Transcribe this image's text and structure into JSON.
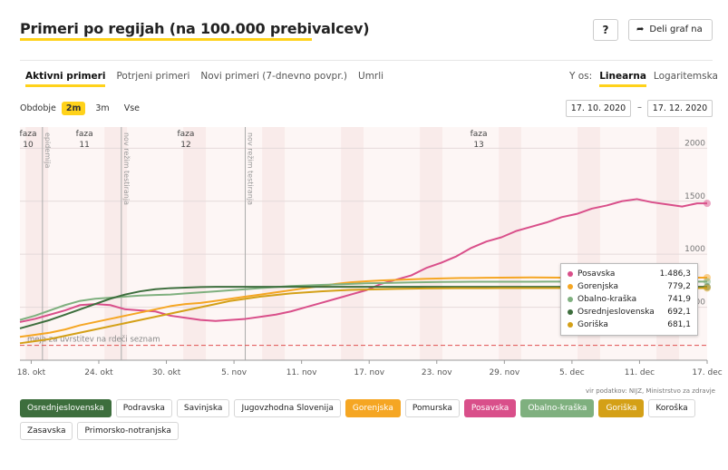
{
  "header": {
    "title": "Primeri po regijah (na 100.000 prebivalcev)",
    "help_label": "?",
    "share_label": "Deli graf na"
  },
  "tabs": [
    {
      "label": "Aktivni primeri",
      "active": true
    },
    {
      "label": "Potrjeni primeri",
      "active": false
    },
    {
      "label": "Novi primeri (7-dnevno povpr.)",
      "active": false
    },
    {
      "label": "Umrli",
      "active": false
    }
  ],
  "y_axis_toggle": {
    "label": "Y os:",
    "options": [
      {
        "label": "Linearna",
        "active": true
      },
      {
        "label": "Logaritemska",
        "active": false
      }
    ]
  },
  "period": {
    "label": "Obdobje",
    "options": [
      {
        "label": "2m",
        "active": true
      },
      {
        "label": "3m",
        "active": false
      },
      {
        "label": "Vse",
        "active": false
      }
    ],
    "date_from": "17. 10. 2020",
    "date_separator": "–",
    "date_to": "17. 12. 2020"
  },
  "chart_data": {
    "type": "line",
    "x_tick_labels": [
      "18. okt",
      "24. okt",
      "30. okt",
      "5. nov",
      "11. nov",
      "17. nov",
      "23. nov",
      "29. nov",
      "5. dec",
      "11. dec",
      "17. dec"
    ],
    "x_range": [
      "2020-10-17",
      "2020-12-17"
    ],
    "y_tick_labels": [
      "500",
      "1000",
      "1500",
      "2000"
    ],
    "ylim": [
      0,
      2200
    ],
    "threshold": {
      "value": 140,
      "label": "meja za uvrstitev na rdeči seznam",
      "color": "#e05050"
    },
    "phases": [
      {
        "label": "faza\n10",
        "date": "2020-10-17"
      },
      {
        "label": "faza\n11",
        "date": "2020-10-22"
      },
      {
        "label": "faza\n12",
        "date": "2020-10-31"
      },
      {
        "label": "faza\n13",
        "date": "2020-11-26"
      }
    ],
    "event_lines": [
      {
        "label": "epidemija",
        "date": "2020-10-19"
      },
      {
        "label": "nov režim testiranja",
        "date": "2020-10-26"
      },
      {
        "label": "nov režim testiranja",
        "date": "2020-11-06"
      }
    ],
    "series": [
      {
        "name": "Posavska",
        "color": "#d94f8a",
        "values": [
          [
            0,
            360
          ],
          [
            3,
            390
          ],
          [
            6,
            430
          ],
          [
            9,
            470
          ],
          [
            12,
            520
          ],
          [
            15,
            530
          ],
          [
            18,
            520
          ],
          [
            21,
            480
          ],
          [
            24,
            470
          ],
          [
            27,
            460
          ],
          [
            30,
            420
          ],
          [
            33,
            400
          ],
          [
            36,
            380
          ],
          [
            39,
            370
          ],
          [
            42,
            380
          ],
          [
            45,
            390
          ],
          [
            48,
            410
          ],
          [
            51,
            430
          ],
          [
            54,
            460
          ],
          [
            57,
            500
          ],
          [
            60,
            540
          ],
          [
            63,
            580
          ],
          [
            66,
            620
          ],
          [
            69,
            660
          ],
          [
            72,
            720
          ],
          [
            75,
            760
          ],
          [
            78,
            800
          ],
          [
            81,
            870
          ],
          [
            84,
            920
          ],
          [
            87,
            980
          ],
          [
            90,
            1060
          ],
          [
            93,
            1120
          ],
          [
            96,
            1160
          ],
          [
            99,
            1220
          ],
          [
            102,
            1260
          ],
          [
            105,
            1300
          ],
          [
            108,
            1350
          ],
          [
            111,
            1380
          ],
          [
            114,
            1430
          ],
          [
            117,
            1460
          ],
          [
            120,
            1500
          ],
          [
            123,
            1520
          ],
          [
            126,
            1490
          ],
          [
            129,
            1470
          ],
          [
            132,
            1450
          ],
          [
            135,
            1480
          ],
          [
            137,
            1480
          ]
        ]
      },
      {
        "name": "Gorenjska",
        "color": "#f5a623",
        "values": [
          [
            0,
            220
          ],
          [
            3,
            240
          ],
          [
            6,
            260
          ],
          [
            9,
            290
          ],
          [
            12,
            330
          ],
          [
            15,
            360
          ],
          [
            18,
            390
          ],
          [
            21,
            420
          ],
          [
            24,
            450
          ],
          [
            27,
            480
          ],
          [
            30,
            510
          ],
          [
            33,
            530
          ],
          [
            36,
            540
          ],
          [
            39,
            560
          ],
          [
            42,
            580
          ],
          [
            45,
            600
          ],
          [
            48,
            620
          ],
          [
            51,
            640
          ],
          [
            54,
            660
          ],
          [
            57,
            680
          ],
          [
            60,
            700
          ],
          [
            63,
            720
          ],
          [
            66,
            735
          ],
          [
            69,
            745
          ],
          [
            72,
            752
          ],
          [
            75,
            758
          ],
          [
            78,
            763
          ],
          [
            81,
            768
          ],
          [
            84,
            772
          ],
          [
            87,
            775
          ],
          [
            90,
            776
          ],
          [
            93,
            778
          ],
          [
            96,
            779
          ],
          [
            99,
            780
          ],
          [
            102,
            781
          ],
          [
            105,
            780
          ],
          [
            108,
            779
          ],
          [
            111,
            779
          ],
          [
            114,
            779
          ],
          [
            117,
            779
          ],
          [
            120,
            779
          ],
          [
            123,
            779
          ],
          [
            126,
            779
          ],
          [
            129,
            779
          ],
          [
            132,
            779
          ],
          [
            135,
            779
          ],
          [
            137,
            779
          ]
        ]
      },
      {
        "name": "Obalno-kraška",
        "color": "#7fb07f",
        "values": [
          [
            0,
            380
          ],
          [
            3,
            420
          ],
          [
            6,
            470
          ],
          [
            9,
            520
          ],
          [
            12,
            560
          ],
          [
            15,
            580
          ],
          [
            18,
            590
          ],
          [
            21,
            600
          ],
          [
            24,
            610
          ],
          [
            27,
            615
          ],
          [
            30,
            620
          ],
          [
            33,
            630
          ],
          [
            36,
            640
          ],
          [
            39,
            650
          ],
          [
            42,
            660
          ],
          [
            45,
            670
          ],
          [
            48,
            680
          ],
          [
            51,
            690
          ],
          [
            54,
            700
          ],
          [
            57,
            705
          ],
          [
            60,
            710
          ],
          [
            63,
            715
          ],
          [
            66,
            720
          ],
          [
            69,
            725
          ],
          [
            72,
            728
          ],
          [
            75,
            731
          ],
          [
            78,
            734
          ],
          [
            81,
            736
          ],
          [
            84,
            738
          ],
          [
            87,
            739
          ],
          [
            90,
            740
          ],
          [
            93,
            740
          ],
          [
            96,
            741
          ],
          [
            99,
            741
          ],
          [
            102,
            741
          ],
          [
            105,
            742
          ],
          [
            108,
            742
          ],
          [
            111,
            742
          ],
          [
            114,
            742
          ],
          [
            117,
            742
          ],
          [
            120,
            742
          ],
          [
            123,
            742
          ],
          [
            126,
            742
          ],
          [
            129,
            742
          ],
          [
            132,
            742
          ],
          [
            135,
            742
          ],
          [
            137,
            742
          ]
        ]
      },
      {
        "name": "Osrednjeslovenska",
        "color": "#3d6e3d",
        "values": [
          [
            0,
            300
          ],
          [
            3,
            340
          ],
          [
            6,
            380
          ],
          [
            9,
            430
          ],
          [
            12,
            480
          ],
          [
            15,
            530
          ],
          [
            18,
            580
          ],
          [
            21,
            620
          ],
          [
            24,
            650
          ],
          [
            27,
            670
          ],
          [
            30,
            680
          ],
          [
            33,
            685
          ],
          [
            36,
            690
          ],
          [
            39,
            692
          ],
          [
            42,
            692
          ],
          [
            45,
            692
          ],
          [
            48,
            692
          ],
          [
            51,
            692
          ],
          [
            54,
            692
          ],
          [
            57,
            692
          ],
          [
            60,
            692
          ],
          [
            63,
            692
          ],
          [
            66,
            692
          ],
          [
            69,
            692
          ],
          [
            72,
            692
          ],
          [
            75,
            692
          ],
          [
            78,
            692
          ],
          [
            81,
            692
          ],
          [
            84,
            692
          ],
          [
            87,
            692
          ],
          [
            90,
            692
          ],
          [
            93,
            692
          ],
          [
            96,
            692
          ],
          [
            99,
            692
          ],
          [
            102,
            692
          ],
          [
            105,
            692
          ],
          [
            108,
            692
          ],
          [
            111,
            692
          ],
          [
            114,
            692
          ],
          [
            117,
            692
          ],
          [
            120,
            692
          ],
          [
            123,
            692
          ],
          [
            126,
            692
          ],
          [
            129,
            692
          ],
          [
            132,
            692
          ],
          [
            135,
            692
          ],
          [
            137,
            692
          ]
        ]
      },
      {
        "name": "Goriška",
        "color": "#d4a017",
        "values": [
          [
            0,
            160
          ],
          [
            3,
            180
          ],
          [
            6,
            200
          ],
          [
            9,
            230
          ],
          [
            12,
            260
          ],
          [
            15,
            290
          ],
          [
            18,
            320
          ],
          [
            21,
            350
          ],
          [
            24,
            380
          ],
          [
            27,
            410
          ],
          [
            30,
            440
          ],
          [
            33,
            470
          ],
          [
            36,
            500
          ],
          [
            39,
            530
          ],
          [
            42,
            560
          ],
          [
            45,
            580
          ],
          [
            48,
            600
          ],
          [
            51,
            615
          ],
          [
            54,
            630
          ],
          [
            57,
            640
          ],
          [
            60,
            650
          ],
          [
            63,
            657
          ],
          [
            66,
            663
          ],
          [
            69,
            667
          ],
          [
            72,
            670
          ],
          [
            75,
            673
          ],
          [
            78,
            675
          ],
          [
            81,
            677
          ],
          [
            84,
            678
          ],
          [
            87,
            679
          ],
          [
            90,
            680
          ],
          [
            93,
            680
          ],
          [
            96,
            681
          ],
          [
            99,
            681
          ],
          [
            102,
            681
          ],
          [
            105,
            681
          ],
          [
            108,
            681
          ],
          [
            111,
            681
          ],
          [
            114,
            681
          ],
          [
            117,
            681
          ],
          [
            120,
            681
          ],
          [
            123,
            681
          ],
          [
            126,
            681
          ],
          [
            129,
            681
          ],
          [
            132,
            681
          ],
          [
            135,
            681
          ],
          [
            137,
            681
          ]
        ]
      }
    ]
  },
  "tooltip": {
    "rows": [
      {
        "name": "Posavska",
        "value": "1.486,3",
        "color": "#d94f8a"
      },
      {
        "name": "Gorenjska",
        "value": "779,2",
        "color": "#f5a623"
      },
      {
        "name": "Obalno-kraška",
        "value": "741,9",
        "color": "#7fb07f"
      },
      {
        "name": "Osrednjeslovenska",
        "value": "692,1",
        "color": "#3d6e3d"
      },
      {
        "name": "Goriška",
        "value": "681,1",
        "color": "#d4a017"
      }
    ]
  },
  "source": {
    "line1": "vir podatkov: NIJZ, Ministrstvo za zdravje"
  },
  "legend": [
    {
      "label": "Osrednjeslovenska",
      "on": true,
      "color": "#3d6e3d"
    },
    {
      "label": "Podravska",
      "on": false,
      "color": ""
    },
    {
      "label": "Savinjska",
      "on": false,
      "color": ""
    },
    {
      "label": "Jugovzhodna Slovenija",
      "on": false,
      "color": ""
    },
    {
      "label": "Gorenjska",
      "on": true,
      "color": "#f5a623"
    },
    {
      "label": "Pomurska",
      "on": false,
      "color": ""
    },
    {
      "label": "Posavska",
      "on": true,
      "color": "#d94f8a"
    },
    {
      "label": "Obalno-kraška",
      "on": true,
      "color": "#7fb07f"
    },
    {
      "label": "Goriška",
      "on": true,
      "color": "#d4a017"
    },
    {
      "label": "Koroška",
      "on": false,
      "color": ""
    },
    {
      "label": "Zasavska",
      "on": false,
      "color": ""
    },
    {
      "label": "Primorsko-notranjska",
      "on": false,
      "color": ""
    }
  ]
}
